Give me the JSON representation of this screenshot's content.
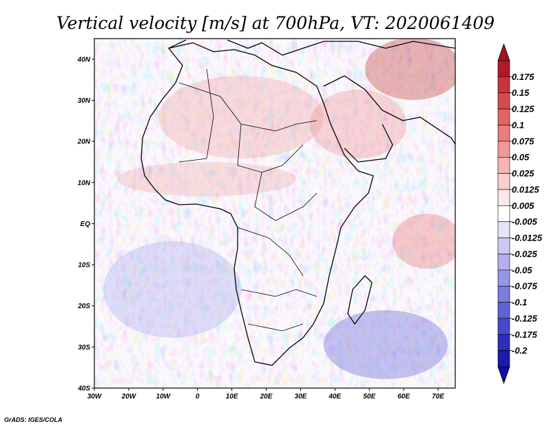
{
  "title": "Vertical velocity [m/s] at 700hPa, VT: 2020061409",
  "credit": "GrADS: IGES/COLA",
  "map": {
    "lon_labels": [
      "30W",
      "20W",
      "10W",
      "0",
      "10E",
      "20E",
      "30E",
      "40E",
      "50E",
      "60E",
      "70E"
    ],
    "lat_labels": [
      "40N",
      "30N",
      "20N",
      "10N",
      "EQ",
      "10S",
      "20S",
      "30S",
      "40S"
    ],
    "lon_range": [
      -30,
      75
    ],
    "lat_range": [
      -40,
      45
    ]
  },
  "colorbar": {
    "labels": [
      "0.175",
      "0.15",
      "0.125",
      "0.1",
      "0.075",
      "0.05",
      "0.025",
      "0.0125",
      "0.005",
      "-0.005",
      "-0.0125",
      "-0.025",
      "-0.05",
      "-0.075",
      "-0.1",
      "-0.125",
      "-0.175",
      "-0.2"
    ],
    "colors": [
      "#b2182b",
      "#c73538",
      "#d64b4b",
      "#e06464",
      "#e87e7e",
      "#ef9999",
      "#f4b4b4",
      "#f9cfcf",
      "#fce8e8",
      "#ffffff",
      "#e3e3fa",
      "#c9c9f4",
      "#b0b0ee",
      "#9696e6",
      "#7c7cdd",
      "#6262d3",
      "#4848c8",
      "#2e2ebc",
      "#1a1aae"
    ],
    "top_arrow_color": "#a3141d",
    "bottom_arrow_color": "#1010a0"
  }
}
